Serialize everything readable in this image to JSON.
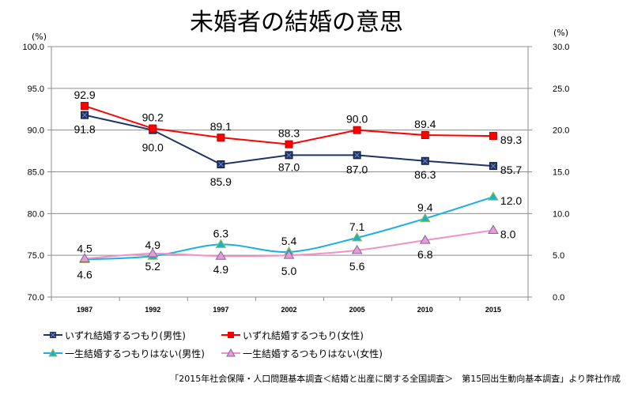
{
  "chart_data": {
    "type": "line",
    "title": "未婚者の結婚の意思",
    "left_axis": {
      "unit_label": "(%)",
      "ylim": [
        70,
        100
      ],
      "ticks": [
        "70.0",
        "75.0",
        "80.0",
        "85.0",
        "90.0",
        "95.0",
        "100.0"
      ]
    },
    "right_axis": {
      "unit_label": "(%)",
      "ylim": [
        0,
        30
      ],
      "ticks": [
        "0.0",
        "5.0",
        "10.0",
        "15.0",
        "20.0",
        "25.0",
        "30.0"
      ]
    },
    "categories": [
      "1987",
      "1992",
      "1997",
      "2002",
      "2005",
      "2010",
      "2015"
    ],
    "grid": true,
    "legend_position": "bottom",
    "series": [
      {
        "name": "いずれ結婚するつもり(男性)",
        "axis": "left",
        "color": "#1f3466",
        "marker": "x-square",
        "values": [
          91.8,
          90.0,
          85.9,
          87.0,
          87.0,
          86.3,
          85.7
        ],
        "labels": [
          "91.8",
          "90.0",
          "85.9",
          "87.0",
          "87.0",
          "86.3",
          "85.7"
        ]
      },
      {
        "name": "いずれ結婚するつもり(女性)",
        "axis": "left",
        "color": "#ff0000",
        "marker": "square",
        "values": [
          92.9,
          90.2,
          89.1,
          88.3,
          90.0,
          89.4,
          89.3
        ],
        "labels": [
          "92.9",
          "90.2",
          "89.1",
          "88.3",
          "90.0",
          "89.4",
          "89.3"
        ]
      },
      {
        "name": "一生結婚するつもりはない(男性)",
        "axis": "right",
        "color": "#1aaee5",
        "marker": "triangle",
        "values": [
          4.5,
          4.9,
          6.3,
          5.4,
          7.1,
          9.4,
          12.0
        ],
        "labels": [
          "4.5",
          "4.9",
          "6.3",
          "5.4",
          "7.1",
          "9.4",
          "12.0"
        ]
      },
      {
        "name": "一生結婚するつもりはない(女性)",
        "axis": "right",
        "color": "#f291c7",
        "marker": "triangle",
        "values": [
          4.6,
          5.2,
          4.9,
          5.0,
          5.6,
          6.8,
          8.0
        ],
        "labels": [
          "4.6",
          "5.2",
          "4.9",
          "5.0",
          "5.6",
          "6.8",
          "8.0"
        ]
      }
    ]
  },
  "source_note": "「2015年社会保障・人口問題基本調査＜結婚と出産に関する全国調査＞　第15回出生動向基本調査」より弊社作成"
}
